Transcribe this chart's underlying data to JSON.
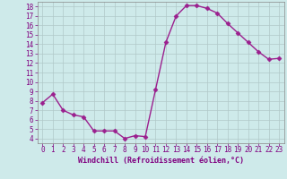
{
  "x": [
    0,
    1,
    2,
    3,
    4,
    5,
    6,
    7,
    8,
    9,
    10,
    11,
    12,
    13,
    14,
    15,
    16,
    17,
    18,
    19,
    20,
    21,
    22,
    23
  ],
  "y": [
    7.8,
    8.7,
    7.0,
    6.5,
    6.3,
    4.8,
    4.8,
    4.8,
    4.0,
    4.3,
    4.2,
    9.2,
    14.2,
    17.0,
    18.1,
    18.1,
    17.8,
    17.3,
    16.2,
    15.2,
    14.2,
    13.2,
    12.4,
    12.5
  ],
  "line_color": "#9b1f8e",
  "marker": "D",
  "markersize": 2.5,
  "linewidth": 1.0,
  "background_color": "#ceeaea",
  "grid_color": "#b0c8c8",
  "xlabel": "Windchill (Refroidissement éolien,°C)",
  "ylabel": "",
  "xlim": [
    -0.5,
    23.5
  ],
  "ylim": [
    3.5,
    18.5
  ],
  "yticks": [
    4,
    5,
    6,
    7,
    8,
    9,
    10,
    11,
    12,
    13,
    14,
    15,
    16,
    17,
    18
  ],
  "xticks": [
    0,
    1,
    2,
    3,
    4,
    5,
    6,
    7,
    8,
    9,
    10,
    11,
    12,
    13,
    14,
    15,
    16,
    17,
    18,
    19,
    20,
    21,
    22,
    23
  ],
  "tick_color": "#800080",
  "label_color": "#800080",
  "tick_fontsize": 5.5,
  "xlabel_fontsize": 6,
  "xlabel_fontweight": "bold"
}
